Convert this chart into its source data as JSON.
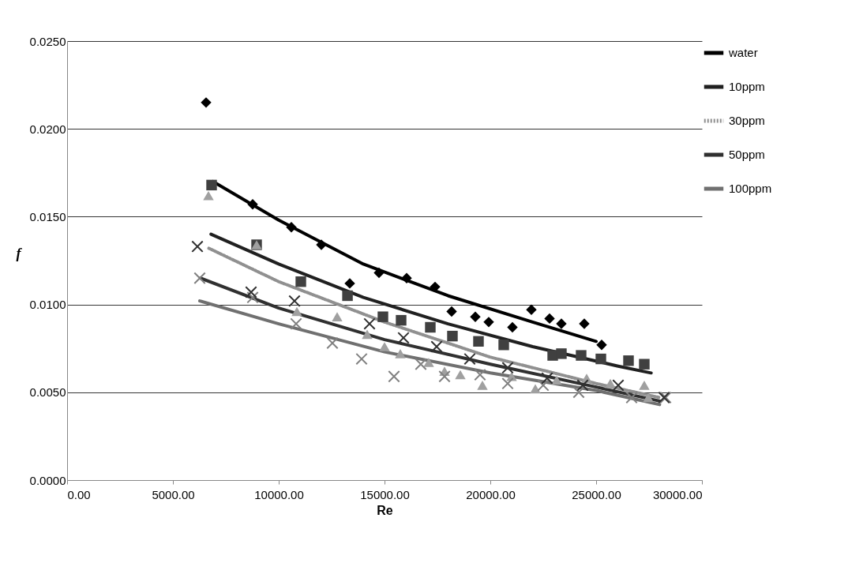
{
  "chart_data": {
    "type": "scatter",
    "xlabel": "Re",
    "ylabel": "f",
    "xlim": [
      0,
      30000
    ],
    "xticks": [
      {
        "value": 0,
        "label": "0.00"
      },
      {
        "value": 5000,
        "label": "5000.00"
      },
      {
        "value": 10000,
        "label": "10000.00"
      },
      {
        "value": 15000,
        "label": "15000.00"
      },
      {
        "value": 20000,
        "label": "20000.00"
      },
      {
        "value": 25000,
        "label": "25000.00"
      },
      {
        "value": 30000,
        "label": "30000.00"
      }
    ],
    "ylim": [
      0,
      0.025
    ],
    "yticks": [
      {
        "value": 0,
        "label": "0.0000"
      },
      {
        "value": 0.005,
        "label": "0.0050"
      },
      {
        "value": 0.01,
        "label": "0.0100"
      },
      {
        "value": 0.015,
        "label": "0.0150"
      },
      {
        "value": 0.02,
        "label": "0.0200"
      },
      {
        "value": 0.025,
        "label": "0.0250"
      }
    ],
    "grid": "y",
    "legend": "right",
    "series": [
      {
        "marker": "diamond",
        "color": "#000000",
        "x": [
          6567,
          8769,
          10597,
          12015,
          13358,
          14739,
          16045,
          17388,
          18172,
          19291,
          19925,
          21045,
          21940,
          22799,
          23358,
          24440,
          25261
        ],
        "values": [
          0.0215,
          0.0157,
          0.0144,
          0.0134,
          0.0112,
          0.0118,
          0.0115,
          0.011,
          0.0096,
          0.0093,
          0.009,
          0.0087,
          0.0097,
          0.0092,
          0.0089,
          0.0089,
          0.0077
        ]
      },
      {
        "marker": "square",
        "color": "#404040",
        "x": [
          6828,
          8955,
          11045,
          13250,
          14925,
          15784,
          17164,
          18209,
          19440,
          20634,
          22948,
          23358,
          24291,
          25224,
          26530,
          27276
        ],
        "values": [
          0.0168,
          0.0134,
          0.0113,
          0.0105,
          0.0093,
          0.0091,
          0.0087,
          0.0082,
          0.0079,
          0.0077,
          0.0071,
          0.0072,
          0.0071,
          0.0069,
          0.0068,
          0.0066
        ]
      },
      {
        "marker": "triangle",
        "color": "#a0a0a0",
        "x": [
          6679,
          8955,
          10858,
          12761,
          14179,
          15000,
          15746,
          17090,
          17836,
          18582,
          19627,
          21007,
          22127,
          23134,
          24552,
          25672,
          27276,
          27463
        ],
        "values": [
          0.0162,
          0.0134,
          0.0096,
          0.0093,
          0.0083,
          0.0076,
          0.0072,
          0.0067,
          0.0062,
          0.006,
          0.0054,
          0.0059,
          0.0052,
          0.0057,
          0.0058,
          0.0055,
          0.0054,
          0.0047
        ]
      },
      {
        "marker": "cross",
        "color": "#303030",
        "x": [
          6157,
          8694,
          10746,
          14291,
          15896,
          17463,
          19030,
          20821,
          22687,
          24366,
          26045,
          28209
        ],
        "values": [
          0.0133,
          0.0107,
          0.0102,
          0.0089,
          0.0081,
          0.0076,
          0.0069,
          0.0064,
          0.0058,
          0.0054,
          0.0054,
          0.0047
        ]
      },
      {
        "marker": "cross",
        "color": "#808080",
        "x": [
          6269,
          8769,
          10821,
          12537,
          13918,
          15448,
          16716,
          17836,
          19515,
          20821,
          22500,
          24179,
          26679,
          28284
        ],
        "values": [
          0.0115,
          0.0104,
          0.0089,
          0.0078,
          0.0069,
          0.0059,
          0.0066,
          0.0059,
          0.006,
          0.0055,
          0.0054,
          0.005,
          0.0047,
          0.0047
        ]
      },
      {
        "type": "line",
        "name": "water",
        "color": "#000000",
        "line_style": "solid",
        "x": [
          6900,
          10000,
          14000,
          18000,
          22000,
          25000
        ],
        "values": [
          0.017,
          0.0148,
          0.0123,
          0.0105,
          0.009,
          0.0079
        ]
      },
      {
        "type": "line",
        "name": "10ppm",
        "color": "#202020",
        "line_style": "solid",
        "x": [
          6800,
          10000,
          14000,
          18000,
          22000,
          26000,
          27600
        ],
        "values": [
          0.014,
          0.0123,
          0.0104,
          0.0089,
          0.0076,
          0.0065,
          0.0061
        ]
      },
      {
        "type": "line",
        "name": "30ppm",
        "color": "#909090",
        "line_style": "dotted",
        "x": [
          6700,
          10000,
          15000,
          20000,
          25000,
          28000
        ],
        "values": [
          0.0132,
          0.0113,
          0.009,
          0.007,
          0.0055,
          0.0047
        ]
      },
      {
        "type": "line",
        "name": "50ppm",
        "color": "#303030",
        "line_style": "solid",
        "x": [
          6300,
          10000,
          15000,
          20000,
          25000,
          28000
        ],
        "values": [
          0.0115,
          0.0098,
          0.008,
          0.0066,
          0.0053,
          0.0045
        ]
      },
      {
        "type": "line",
        "name": "100ppm",
        "color": "#707070",
        "line_style": "solid",
        "x": [
          6269,
          10000,
          15000,
          20000,
          25000,
          28000
        ],
        "values": [
          0.0102,
          0.0089,
          0.0073,
          0.0061,
          0.0051,
          0.0043
        ]
      }
    ]
  }
}
